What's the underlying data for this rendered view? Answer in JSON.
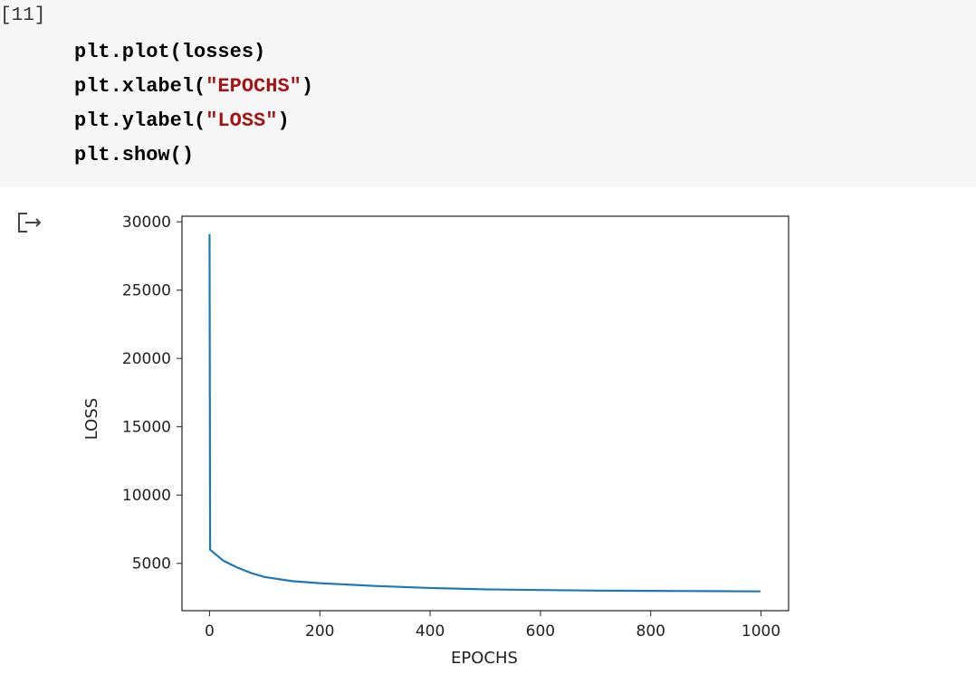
{
  "cell": {
    "label": "[11]",
    "code": [
      [
        {
          "text": "plt.plot(losses)",
          "color": "#000000"
        }
      ],
      [
        {
          "text": "plt.xlabel(",
          "color": "#000000"
        },
        {
          "text": "\"EPOCHS\"",
          "color": "#a31515"
        },
        {
          "text": ")",
          "color": "#000000"
        }
      ],
      [
        {
          "text": "plt.ylabel(",
          "color": "#000000"
        },
        {
          "text": "\"LOSS\"",
          "color": "#a31515"
        },
        {
          "text": ")",
          "color": "#000000"
        }
      ],
      [
        {
          "text": "plt.show()",
          "color": "#000000"
        }
      ]
    ]
  },
  "chart_data": {
    "type": "line",
    "x": [
      0,
      1,
      10,
      25,
      50,
      75,
      100,
      150,
      200,
      300,
      400,
      500,
      600,
      700,
      800,
      900,
      999
    ],
    "values": [
      29100,
      6000,
      5700,
      5200,
      4700,
      4300,
      4000,
      3700,
      3550,
      3350,
      3200,
      3100,
      3050,
      3010,
      2990,
      2970,
      2950
    ],
    "color": "#1f77b4",
    "xlabel": "EPOCHS",
    "ylabel": "LOSS",
    "xlim": [
      -50,
      1050
    ],
    "ylim": [
      1540,
      30410
    ],
    "xticks": [
      0,
      200,
      400,
      600,
      800,
      1000
    ],
    "yticks": [
      5000,
      10000,
      15000,
      20000,
      25000,
      30000
    ]
  }
}
